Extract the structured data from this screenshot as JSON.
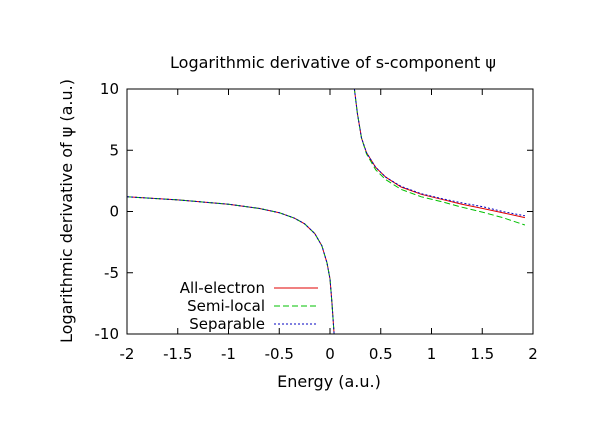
{
  "chart_data": {
    "type": "line",
    "title": "Logarithmic derivative of s-component ψ",
    "xlabel": "Energy (a.u.)",
    "ylabel": "Logarithmic derivative of ψ (a.u.)",
    "xlim": [
      -2,
      2
    ],
    "ylim": [
      -10,
      10
    ],
    "xticks": [
      "-2",
      "-1.5",
      "-1",
      "-0.5",
      "0",
      "0.5",
      "1",
      "1.5",
      "2"
    ],
    "yticks": [
      "-10",
      "-5",
      "0",
      "5",
      "10"
    ],
    "grid": false,
    "legend_position": "bottom-left",
    "series": [
      {
        "name": "All-electron",
        "color": "#e00000",
        "dash": "",
        "branches": [
          [
            [
              -2.0,
              1.2
            ],
            [
              -1.5,
              0.95
            ],
            [
              -1.0,
              0.6
            ],
            [
              -0.7,
              0.25
            ],
            [
              -0.5,
              -0.1
            ],
            [
              -0.35,
              -0.55
            ],
            [
              -0.25,
              -1.0
            ],
            [
              -0.15,
              -1.8
            ],
            [
              -0.08,
              -2.8
            ],
            [
              -0.03,
              -4.2
            ],
            [
              0.0,
              -5.5
            ],
            [
              0.02,
              -7.5
            ],
            [
              0.04,
              -10.0
            ]
          ],
          [
            [
              0.24,
              10.0
            ],
            [
              0.27,
              8.0
            ],
            [
              0.31,
              6.0
            ],
            [
              0.36,
              4.8
            ],
            [
              0.45,
              3.6
            ],
            [
              0.55,
              2.8
            ],
            [
              0.7,
              2.0
            ],
            [
              0.9,
              1.4
            ],
            [
              1.1,
              1.0
            ],
            [
              1.3,
              0.6
            ],
            [
              1.5,
              0.25
            ],
            [
              1.7,
              -0.1
            ],
            [
              1.92,
              -0.5
            ]
          ]
        ]
      },
      {
        "name": "Semi-local",
        "color": "#00c000",
        "dash": "6,3",
        "branches": [
          [
            [
              -2.0,
              1.2
            ],
            [
              -1.5,
              0.95
            ],
            [
              -1.0,
              0.6
            ],
            [
              -0.7,
              0.25
            ],
            [
              -0.5,
              -0.1
            ],
            [
              -0.35,
              -0.55
            ],
            [
              -0.25,
              -1.0
            ],
            [
              -0.15,
              -1.8
            ],
            [
              -0.08,
              -2.8
            ],
            [
              -0.03,
              -4.2
            ],
            [
              0.0,
              -5.5
            ],
            [
              0.02,
              -7.5
            ],
            [
              0.04,
              -10.0
            ]
          ],
          [
            [
              0.24,
              10.0
            ],
            [
              0.27,
              8.0
            ],
            [
              0.31,
              6.0
            ],
            [
              0.36,
              4.7
            ],
            [
              0.45,
              3.4
            ],
            [
              0.55,
              2.6
            ],
            [
              0.7,
              1.8
            ],
            [
              0.9,
              1.2
            ],
            [
              1.1,
              0.8
            ],
            [
              1.3,
              0.35
            ],
            [
              1.5,
              -0.05
            ],
            [
              1.7,
              -0.5
            ],
            [
              1.92,
              -1.1
            ]
          ]
        ]
      },
      {
        "name": "Separable",
        "color": "#0000c0",
        "dash": "2,2",
        "branches": [
          [
            [
              -2.0,
              1.2
            ],
            [
              -1.5,
              0.95
            ],
            [
              -1.0,
              0.6
            ],
            [
              -0.7,
              0.25
            ],
            [
              -0.5,
              -0.1
            ],
            [
              -0.35,
              -0.55
            ],
            [
              -0.25,
              -1.0
            ],
            [
              -0.15,
              -1.8
            ],
            [
              -0.08,
              -2.8
            ],
            [
              -0.03,
              -4.2
            ],
            [
              0.0,
              -5.5
            ],
            [
              0.02,
              -7.5
            ],
            [
              0.04,
              -10.0
            ]
          ],
          [
            [
              0.24,
              10.0
            ],
            [
              0.27,
              8.0
            ],
            [
              0.31,
              6.0
            ],
            [
              0.36,
              4.8
            ],
            [
              0.45,
              3.6
            ],
            [
              0.55,
              2.8
            ],
            [
              0.7,
              2.05
            ],
            [
              0.9,
              1.45
            ],
            [
              1.1,
              1.05
            ],
            [
              1.3,
              0.7
            ],
            [
              1.5,
              0.4
            ],
            [
              1.7,
              0.0
            ],
            [
              1.92,
              -0.35
            ]
          ]
        ]
      }
    ]
  }
}
